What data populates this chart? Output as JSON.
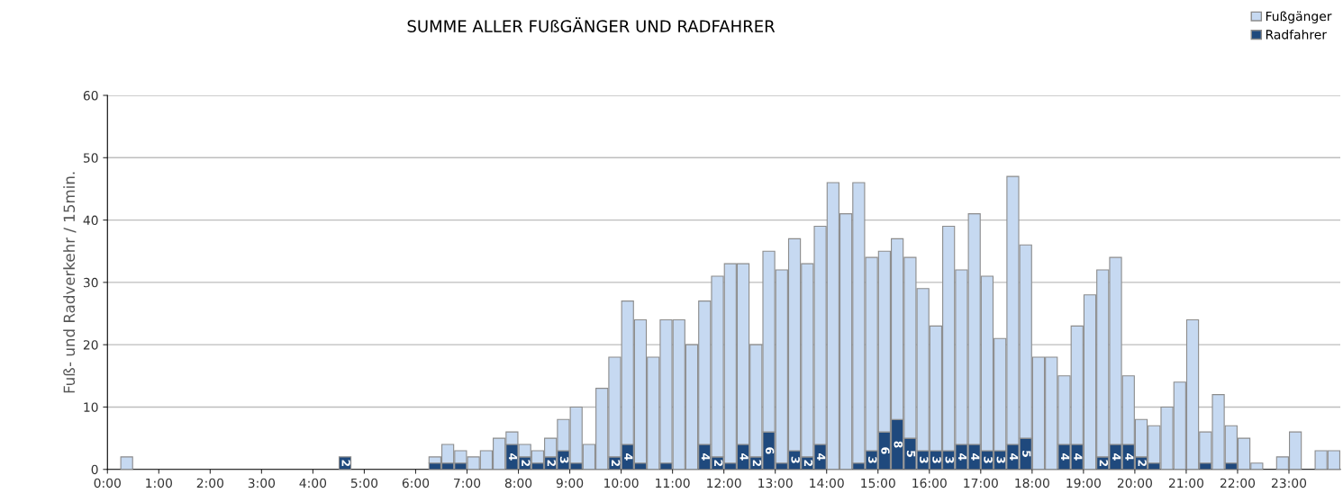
{
  "chart_data": {
    "type": "bar",
    "stacked": true,
    "title": "SUMME ALLER FUßGÄNGER UND RADFAHRER",
    "ylabel": "Fuß- und Radverkehr / 15min.",
    "x": [
      0.125,
      0.375,
      0.625,
      0.875,
      1.125,
      1.375,
      1.625,
      1.875,
      2.125,
      2.375,
      2.625,
      2.875,
      3.125,
      3.375,
      3.625,
      3.875,
      4.125,
      4.375,
      4.625,
      4.875,
      5.125,
      5.375,
      5.625,
      5.875,
      6.125,
      6.375,
      6.625,
      6.875,
      7.125,
      7.375,
      7.625,
      7.875,
      8.125,
      8.375,
      8.625,
      8.875,
      9.125,
      9.375,
      9.625,
      9.875,
      10.125,
      10.375,
      10.625,
      10.875,
      11.125,
      11.375,
      11.625,
      11.875,
      12.125,
      12.375,
      12.625,
      12.875,
      13.125,
      13.375,
      13.625,
      13.875,
      14.125,
      14.375,
      14.625,
      14.875,
      15.125,
      15.375,
      15.625,
      15.875,
      16.125,
      16.375,
      16.625,
      16.875,
      17.125,
      17.375,
      17.625,
      17.875,
      18.125,
      18.375,
      18.625,
      18.875,
      19.125,
      19.375,
      19.625,
      19.875,
      20.125,
      20.375,
      20.625,
      20.875,
      21.125,
      21.375,
      21.625,
      21.875,
      22.125,
      22.375,
      22.625,
      22.875,
      23.125,
      23.375,
      23.625,
      23.875
    ],
    "series": [
      {
        "name": "Radfahrer",
        "color": "#1f497d",
        "values": [
          0,
          0,
          0,
          0,
          0,
          0,
          0,
          0,
          0,
          0,
          0,
          0,
          0,
          0,
          0,
          0,
          0,
          0,
          2,
          0,
          0,
          0,
          0,
          0,
          0,
          1,
          1,
          1,
          0,
          0,
          0,
          4,
          2,
          1,
          2,
          3,
          1,
          0,
          0,
          2,
          4,
          1,
          0,
          1,
          0,
          0,
          4,
          2,
          1,
          4,
          2,
          6,
          1,
          3,
          2,
          4,
          0,
          0,
          1,
          3,
          6,
          8,
          5,
          3,
          3,
          3,
          4,
          4,
          3,
          3,
          4,
          5,
          0,
          0,
          4,
          4,
          0,
          2,
          4,
          4,
          2,
          1,
          0,
          0,
          0,
          1,
          0,
          1,
          0,
          0,
          0,
          0,
          0,
          0,
          0,
          0
        ],
        "value_labels": [
          null,
          null,
          null,
          null,
          null,
          null,
          null,
          null,
          null,
          null,
          null,
          null,
          null,
          null,
          null,
          null,
          null,
          null,
          "2",
          null,
          null,
          null,
          null,
          null,
          null,
          null,
          null,
          null,
          null,
          null,
          null,
          "4",
          "2",
          null,
          "2",
          "3",
          null,
          null,
          null,
          "2",
          "4",
          null,
          null,
          null,
          null,
          null,
          "4",
          "2",
          null,
          "4",
          "2",
          "6",
          null,
          "3",
          "2",
          "4",
          null,
          null,
          null,
          "3",
          "6",
          "8",
          "5",
          "3",
          "3",
          "3",
          "4",
          "4",
          "3",
          "3",
          "4",
          "5",
          null,
          null,
          "4",
          "4",
          null,
          "2",
          "4",
          "4",
          "2",
          null,
          null,
          null,
          null,
          null,
          null,
          null,
          null,
          null,
          null,
          null,
          null,
          null,
          null,
          null
        ]
      },
      {
        "name": "Fußgänger",
        "color": "#c6d9f1",
        "values": [
          0,
          2,
          0,
          0,
          0,
          0,
          0,
          0,
          0,
          0,
          0,
          0,
          0,
          0,
          0,
          0,
          0,
          0,
          0,
          0,
          0,
          0,
          0,
          0,
          0,
          1,
          3,
          2,
          2,
          3,
          5,
          2,
          2,
          2,
          3,
          5,
          9,
          4,
          13,
          16,
          23,
          23,
          18,
          23,
          24,
          20,
          23,
          29,
          32,
          29,
          18,
          29,
          31,
          34,
          31,
          35,
          46,
          41,
          45,
          31,
          29,
          29,
          29,
          26,
          20,
          36,
          28,
          37,
          28,
          18,
          43,
          31,
          18,
          18,
          11,
          19,
          28,
          30,
          30,
          11,
          6,
          6,
          10,
          14,
          24,
          5,
          12,
          6,
          5,
          1,
          0,
          2,
          6,
          0,
          3,
          3
        ]
      }
    ],
    "xlim": [
      0,
      24
    ],
    "xticks": [
      {
        "value": 0,
        "label": "0:00"
      },
      {
        "value": 1,
        "label": "1:00"
      },
      {
        "value": 2,
        "label": "2:00"
      },
      {
        "value": 3,
        "label": "3:00"
      },
      {
        "value": 4,
        "label": "4:00"
      },
      {
        "value": 5,
        "label": "5:00"
      },
      {
        "value": 6,
        "label": "6:00"
      },
      {
        "value": 7,
        "label": "7:00"
      },
      {
        "value": 8,
        "label": "8:00"
      },
      {
        "value": 9,
        "label": "9:00"
      },
      {
        "value": 10,
        "label": "10:00"
      },
      {
        "value": 11,
        "label": "11:00"
      },
      {
        "value": 12,
        "label": "12:00"
      },
      {
        "value": 13,
        "label": "13:00"
      },
      {
        "value": 14,
        "label": "14:00"
      },
      {
        "value": 15,
        "label": "15:00"
      },
      {
        "value": 16,
        "label": "16:00"
      },
      {
        "value": 17,
        "label": "17:00"
      },
      {
        "value": 18,
        "label": "18:00"
      },
      {
        "value": 19,
        "label": "19:00"
      },
      {
        "value": 20,
        "label": "20:00"
      },
      {
        "value": 21,
        "label": "21:00"
      },
      {
        "value": 22,
        "label": "22:00"
      },
      {
        "value": 23,
        "label": "23:00"
      }
    ],
    "ylim": [
      0,
      60
    ],
    "yticks": [
      0,
      10,
      20,
      30,
      40,
      50,
      60
    ],
    "grid": "y",
    "legend": "top right"
  }
}
